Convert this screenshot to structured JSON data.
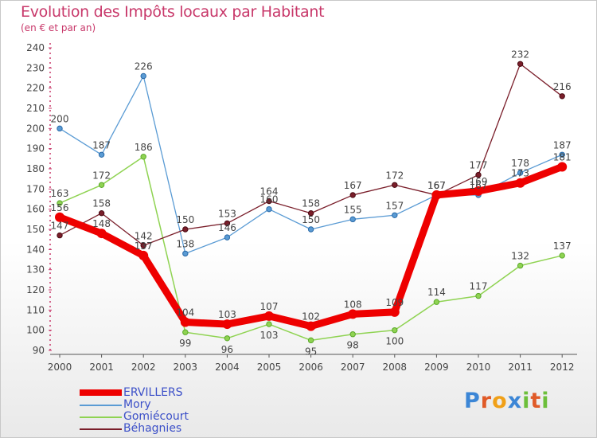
{
  "header": {
    "title": "Evolution des Impôts locaux par Habitant",
    "subtitle": "(en € et par an)"
  },
  "logo": {
    "text": "Proxiti"
  },
  "chart_data": {
    "type": "line",
    "title": "Evolution des Impôts locaux par Habitant",
    "subtitle": "(en € et par an)",
    "xlabel": "",
    "ylabel": "",
    "ylim": [
      90,
      240
    ],
    "yticks": [
      90,
      100,
      110,
      120,
      130,
      140,
      150,
      160,
      170,
      180,
      190,
      200,
      210,
      220,
      230,
      240
    ],
    "grid": false,
    "legend_position": "bottom-left",
    "categories": [
      "2000",
      "2001",
      "2002",
      "2003",
      "2004",
      "2005",
      "2006",
      "2007",
      "2008",
      "2009",
      "2010",
      "2011",
      "2012"
    ],
    "series": [
      {
        "name": "ERVILLERS",
        "color": "#ee0000",
        "values": [
          156,
          148,
          137,
          104,
          103,
          107,
          102,
          108,
          109,
          167,
          169,
          173,
          181
        ],
        "labels": [
          "156",
          "148",
          "137",
          "104",
          "103",
          "107",
          "102",
          "108",
          "109",
          "167",
          "169",
          "173",
          "181"
        ]
      },
      {
        "name": "Mory",
        "color": "#5a9bd4",
        "values": [
          200,
          187,
          226,
          138,
          146,
          160,
          150,
          155,
          157,
          167,
          167,
          178,
          187
        ],
        "labels": [
          "200",
          "187",
          "226",
          "138",
          "146",
          "160",
          "150",
          "155",
          "157",
          "167",
          "167",
          "178",
          "187"
        ]
      },
      {
        "name": "Gomiécourt",
        "color": "#8fd352",
        "values": [
          163,
          172,
          186,
          99,
          96,
          103,
          95,
          98,
          100,
          114,
          117,
          132,
          137
        ],
        "labels": [
          "163",
          "172",
          "186",
          "99",
          "96",
          "103",
          "95",
          "98",
          "100",
          "114",
          "117",
          "132",
          "137"
        ]
      },
      {
        "name": "Béhagnies",
        "color": "#7a1e2a",
        "values": [
          147,
          158,
          142,
          150,
          153,
          164,
          158,
          167,
          172,
          167,
          177,
          232,
          216
        ],
        "labels": [
          "147",
          "158",
          "142",
          "150",
          "153",
          "164",
          "158",
          "167",
          "172",
          "167",
          "177",
          "232",
          "216"
        ]
      }
    ]
  }
}
